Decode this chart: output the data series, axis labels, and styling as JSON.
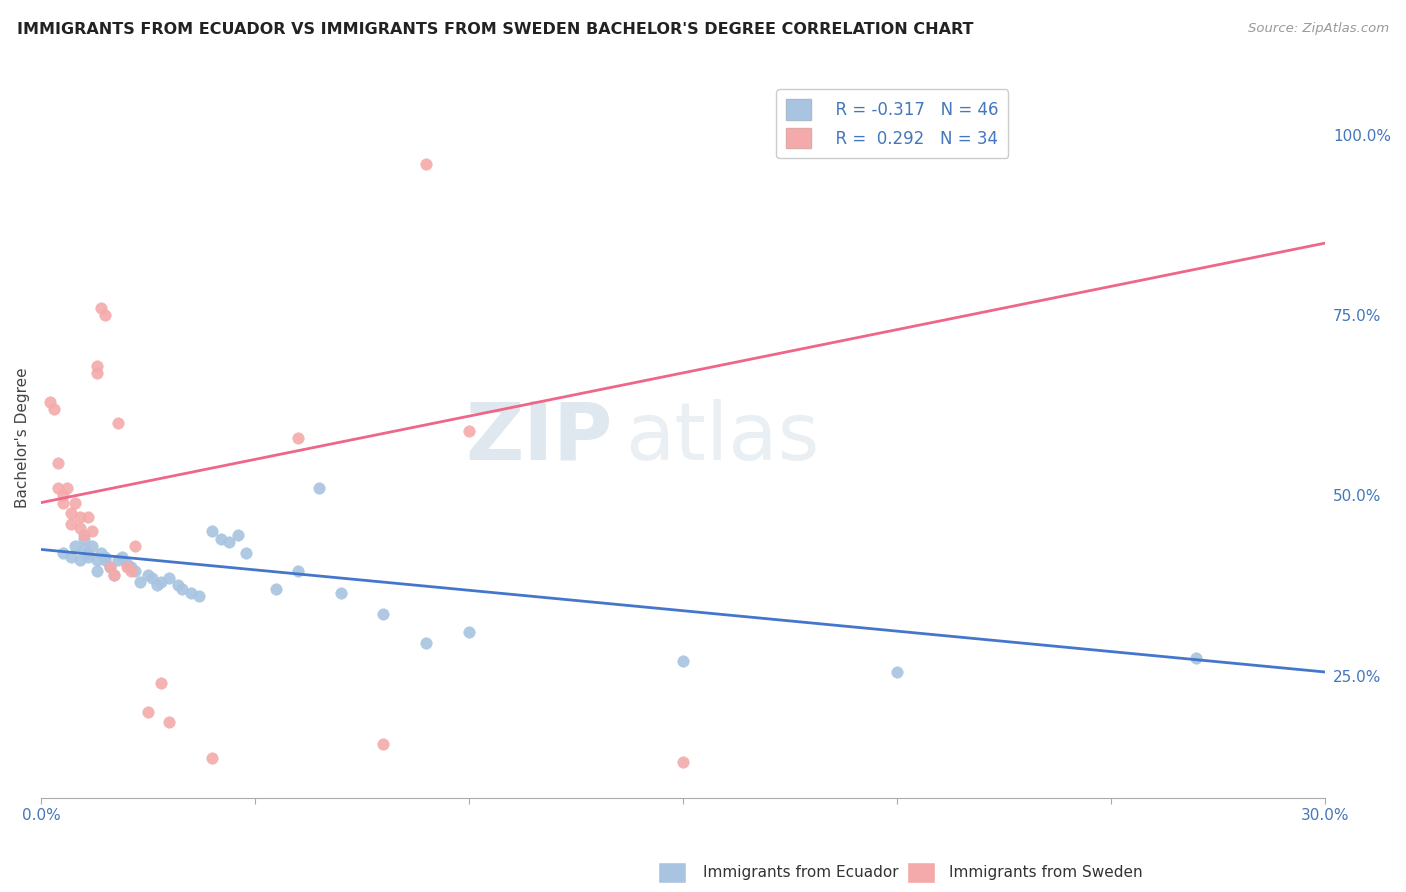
{
  "title": "IMMIGRANTS FROM ECUADOR VS IMMIGRANTS FROM SWEDEN BACHELOR'S DEGREE CORRELATION CHART",
  "source_text": "Source: ZipAtlas.com",
  "ylabel": "Bachelor's Degree",
  "xlim": [
    0.0,
    0.3
  ],
  "ylim": [
    0.08,
    1.08
  ],
  "xticks": [
    0.0,
    0.05,
    0.1,
    0.15,
    0.2,
    0.25,
    0.3
  ],
  "yticks_right": [
    0.25,
    0.5,
    0.75,
    1.0
  ],
  "yticklabels_right": [
    "25.0%",
    "50.0%",
    "75.0%",
    "100.0%"
  ],
  "ecuador_color": "#A8C4E0",
  "sweden_color": "#F4AAAA",
  "ecuador_line_color": "#4477CC",
  "sweden_line_color": "#EE6688",
  "ecuador_R": -0.317,
  "ecuador_N": 46,
  "sweden_R": 0.292,
  "sweden_N": 34,
  "watermark_zip": "ZIP",
  "watermark_atlas": "atlas",
  "grid_color": "#DDDDDD",
  "ecuador_scatter": [
    [
      0.005,
      0.42
    ],
    [
      0.007,
      0.415
    ],
    [
      0.008,
      0.43
    ],
    [
      0.009,
      0.41
    ],
    [
      0.01,
      0.44
    ],
    [
      0.01,
      0.425
    ],
    [
      0.011,
      0.415
    ],
    [
      0.011,
      0.42
    ],
    [
      0.012,
      0.43
    ],
    [
      0.013,
      0.41
    ],
    [
      0.013,
      0.395
    ],
    [
      0.014,
      0.42
    ],
    [
      0.015,
      0.415
    ],
    [
      0.015,
      0.41
    ],
    [
      0.016,
      0.4
    ],
    [
      0.017,
      0.39
    ],
    [
      0.018,
      0.41
    ],
    [
      0.019,
      0.415
    ],
    [
      0.02,
      0.405
    ],
    [
      0.021,
      0.4
    ],
    [
      0.022,
      0.395
    ],
    [
      0.023,
      0.38
    ],
    [
      0.025,
      0.39
    ],
    [
      0.026,
      0.385
    ],
    [
      0.027,
      0.375
    ],
    [
      0.028,
      0.38
    ],
    [
      0.03,
      0.385
    ],
    [
      0.032,
      0.375
    ],
    [
      0.033,
      0.37
    ],
    [
      0.035,
      0.365
    ],
    [
      0.037,
      0.36
    ],
    [
      0.04,
      0.45
    ],
    [
      0.042,
      0.44
    ],
    [
      0.044,
      0.435
    ],
    [
      0.046,
      0.445
    ],
    [
      0.048,
      0.42
    ],
    [
      0.055,
      0.37
    ],
    [
      0.06,
      0.395
    ],
    [
      0.065,
      0.51
    ],
    [
      0.07,
      0.365
    ],
    [
      0.08,
      0.335
    ],
    [
      0.09,
      0.295
    ],
    [
      0.1,
      0.31
    ],
    [
      0.15,
      0.27
    ],
    [
      0.2,
      0.255
    ],
    [
      0.27,
      0.275
    ]
  ],
  "sweden_scatter": [
    [
      0.002,
      0.63
    ],
    [
      0.003,
      0.62
    ],
    [
      0.004,
      0.545
    ],
    [
      0.004,
      0.51
    ],
    [
      0.005,
      0.5
    ],
    [
      0.005,
      0.49
    ],
    [
      0.006,
      0.51
    ],
    [
      0.007,
      0.475
    ],
    [
      0.007,
      0.46
    ],
    [
      0.008,
      0.49
    ],
    [
      0.009,
      0.47
    ],
    [
      0.009,
      0.455
    ],
    [
      0.01,
      0.445
    ],
    [
      0.011,
      0.47
    ],
    [
      0.012,
      0.45
    ],
    [
      0.013,
      0.68
    ],
    [
      0.013,
      0.67
    ],
    [
      0.014,
      0.76
    ],
    [
      0.015,
      0.75
    ],
    [
      0.016,
      0.4
    ],
    [
      0.017,
      0.39
    ],
    [
      0.018,
      0.6
    ],
    [
      0.02,
      0.4
    ],
    [
      0.021,
      0.395
    ],
    [
      0.022,
      0.43
    ],
    [
      0.025,
      0.2
    ],
    [
      0.028,
      0.24
    ],
    [
      0.03,
      0.185
    ],
    [
      0.04,
      0.135
    ],
    [
      0.06,
      0.58
    ],
    [
      0.08,
      0.155
    ],
    [
      0.09,
      0.96
    ],
    [
      0.1,
      0.59
    ],
    [
      0.15,
      0.13
    ]
  ],
  "ecuador_trendline": [
    0.0,
    0.3
  ],
  "ecuador_trend_y": [
    0.425,
    0.255
  ],
  "sweden_trendline": [
    0.0,
    0.3
  ],
  "sweden_trend_y": [
    0.49,
    0.85
  ]
}
